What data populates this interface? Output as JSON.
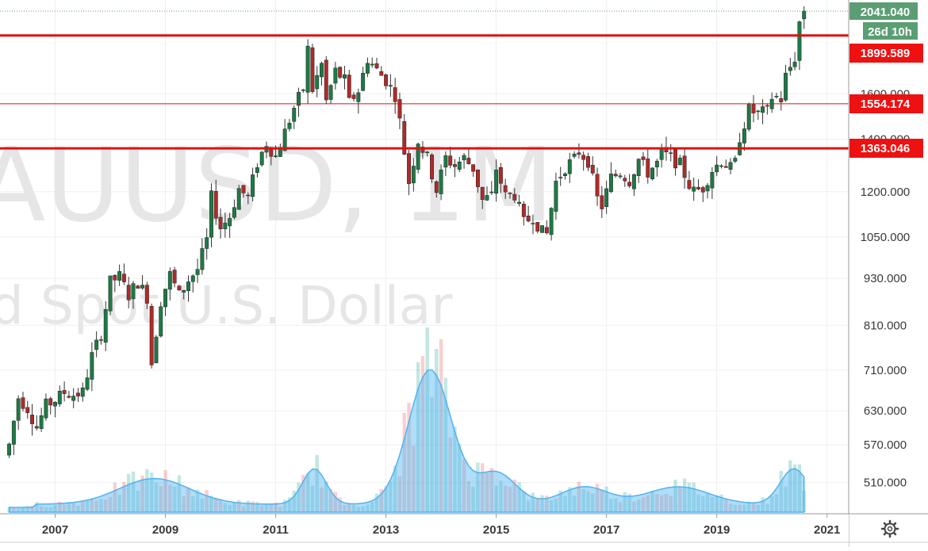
{
  "watermark": {
    "symbol": "AUUSD, 1M",
    "description": "d Spot U.S. Dollar"
  },
  "price_axis": {
    "ticks": [
      "2041.040",
      "1600.000",
      "1400.000",
      "1200.000",
      "1050.000",
      "930.000",
      "810.000",
      "710.000",
      "630.000",
      "570.000",
      "510.000"
    ]
  },
  "time_axis": {
    "ticks": [
      "2007",
      "2009",
      "2011",
      "2013",
      "2015",
      "2017",
      "2019",
      "2021"
    ]
  },
  "badges": {
    "last_price": "2041.040",
    "countdown": "26d 10h",
    "level_1": "1899.589",
    "level_2": "1554.174",
    "level_3": "1363.046"
  },
  "colors": {
    "up": "#26a69a",
    "down": "#ef5350",
    "candle_up": "#1e7a45",
    "candle_down": "#b02a2a",
    "level_line": "#dd1111",
    "badge_green": "#5b9e74",
    "badge_red": "#ee1111",
    "volume_area": "#4fb3f0",
    "grid": "#efefef"
  },
  "icons": {
    "settings": "gear-icon"
  },
  "chart_data": {
    "type": "candlestick",
    "interval": "1M",
    "scale": "log",
    "grid": true,
    "x_range": [
      "2006-01",
      "2022-01"
    ],
    "y_range": [
      450,
      2100
    ],
    "horizontal_levels": [
      1899.589,
      1554.174,
      1363.046
    ],
    "last_price": 2041.04,
    "series": [
      {
        "kind": "ohlc_close",
        "points": [
          [
            "2006-03",
            570
          ],
          [
            "2006-05",
            655
          ],
          [
            "2006-07",
            635
          ],
          [
            "2006-09",
            600
          ],
          [
            "2006-11",
            640
          ],
          [
            "2007-01",
            650
          ],
          [
            "2007-03",
            665
          ],
          [
            "2007-05",
            660
          ],
          [
            "2007-07",
            665
          ],
          [
            "2007-09",
            740
          ],
          [
            "2007-11",
            790
          ],
          [
            "2008-01",
            920
          ],
          [
            "2008-03",
            935
          ],
          [
            "2008-05",
            885
          ],
          [
            "2008-07",
            920
          ],
          [
            "2008-09",
            880
          ],
          [
            "2008-10",
            725
          ],
          [
            "2008-12",
            870
          ],
          [
            "2009-02",
            940
          ],
          [
            "2009-04",
            885
          ],
          [
            "2009-06",
            925
          ],
          [
            "2009-08",
            955
          ],
          [
            "2009-10",
            1040
          ],
          [
            "2009-11",
            1180
          ],
          [
            "2010-01",
            1080
          ],
          [
            "2010-03",
            1115
          ],
          [
            "2010-05",
            1210
          ],
          [
            "2010-07",
            1180
          ],
          [
            "2010-09",
            1305
          ],
          [
            "2010-11",
            1385
          ],
          [
            "2011-01",
            1330
          ],
          [
            "2011-03",
            1430
          ],
          [
            "2011-05",
            1535
          ],
          [
            "2011-07",
            1625
          ],
          [
            "2011-08",
            1825
          ],
          [
            "2011-09",
            1620
          ],
          [
            "2011-11",
            1745
          ],
          [
            "2011-12",
            1565
          ],
          [
            "2012-02",
            1710
          ],
          [
            "2012-04",
            1665
          ],
          [
            "2012-05",
            1560
          ],
          [
            "2012-07",
            1615
          ],
          [
            "2012-09",
            1775
          ],
          [
            "2012-11",
            1715
          ],
          [
            "2013-01",
            1665
          ],
          [
            "2013-03",
            1595
          ],
          [
            "2013-04",
            1475
          ],
          [
            "2013-06",
            1235
          ],
          [
            "2013-08",
            1395
          ],
          [
            "2013-10",
            1325
          ],
          [
            "2013-12",
            1205
          ],
          [
            "2014-02",
            1325
          ],
          [
            "2014-04",
            1295
          ],
          [
            "2014-06",
            1325
          ],
          [
            "2014-08",
            1285
          ],
          [
            "2014-10",
            1170
          ],
          [
            "2014-12",
            1185
          ],
          [
            "2015-01",
            1285
          ],
          [
            "2015-03",
            1185
          ],
          [
            "2015-05",
            1190
          ],
          [
            "2015-07",
            1095
          ],
          [
            "2015-09",
            1115
          ],
          [
            "2015-11",
            1065
          ],
          [
            "2015-12",
            1060
          ],
          [
            "2016-02",
            1235
          ],
          [
            "2016-04",
            1290
          ],
          [
            "2016-06",
            1320
          ],
          [
            "2016-07",
            1350
          ],
          [
            "2016-09",
            1315
          ],
          [
            "2016-11",
            1175
          ],
          [
            "2016-12",
            1150
          ],
          [
            "2017-02",
            1250
          ],
          [
            "2017-04",
            1270
          ],
          [
            "2017-06",
            1240
          ],
          [
            "2017-08",
            1320
          ],
          [
            "2017-10",
            1270
          ],
          [
            "2017-12",
            1305
          ],
          [
            "2018-01",
            1345
          ],
          [
            "2018-03",
            1325
          ],
          [
            "2018-05",
            1300
          ],
          [
            "2018-07",
            1225
          ],
          [
            "2018-08",
            1200
          ],
          [
            "2018-10",
            1215
          ],
          [
            "2018-12",
            1280
          ],
          [
            "2019-02",
            1315
          ],
          [
            "2019-04",
            1285
          ],
          [
            "2019-05",
            1305
          ],
          [
            "2019-06",
            1410
          ],
          [
            "2019-08",
            1525
          ],
          [
            "2019-10",
            1510
          ],
          [
            "2019-12",
            1520
          ],
          [
            "2020-01",
            1585
          ],
          [
            "2020-02",
            1585
          ],
          [
            "2020-03",
            1575
          ],
          [
            "2020-04",
            1685
          ],
          [
            "2020-05",
            1730
          ],
          [
            "2020-06",
            1780
          ],
          [
            "2020-07",
            1975
          ],
          [
            "2020-08",
            2041.04
          ]
        ]
      }
    ]
  }
}
